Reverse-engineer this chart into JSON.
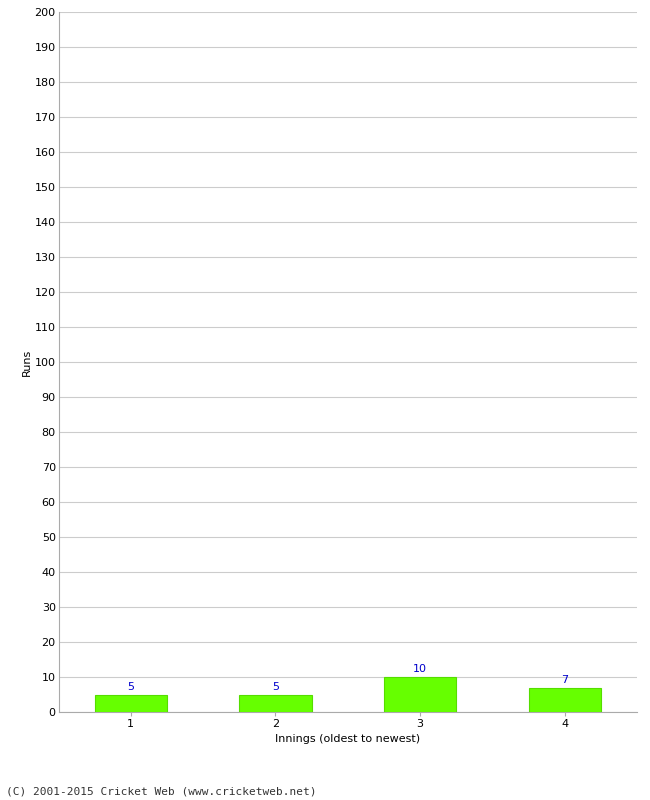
{
  "title": "",
  "xlabel": "Innings (oldest to newest)",
  "ylabel": "Runs",
  "categories": [
    1,
    2,
    3,
    4
  ],
  "values": [
    5,
    5,
    10,
    7
  ],
  "bar_color": "#66ff00",
  "bar_edgecolor": "#55dd00",
  "label_color": "#0000cc",
  "label_fontsize": 8,
  "ylim": [
    0,
    200
  ],
  "yticks": [
    0,
    10,
    20,
    30,
    40,
    50,
    60,
    70,
    80,
    90,
    100,
    110,
    120,
    130,
    140,
    150,
    160,
    170,
    180,
    190,
    200
  ],
  "xtick_fontsize": 8,
  "ytick_fontsize": 8,
  "xlabel_fontsize": 8,
  "ylabel_fontsize": 8,
  "footer": "(C) 2001-2015 Cricket Web (www.cricketweb.net)",
  "footer_fontsize": 8,
  "background_color": "#ffffff",
  "grid_color": "#cccccc",
  "bar_width": 0.5
}
